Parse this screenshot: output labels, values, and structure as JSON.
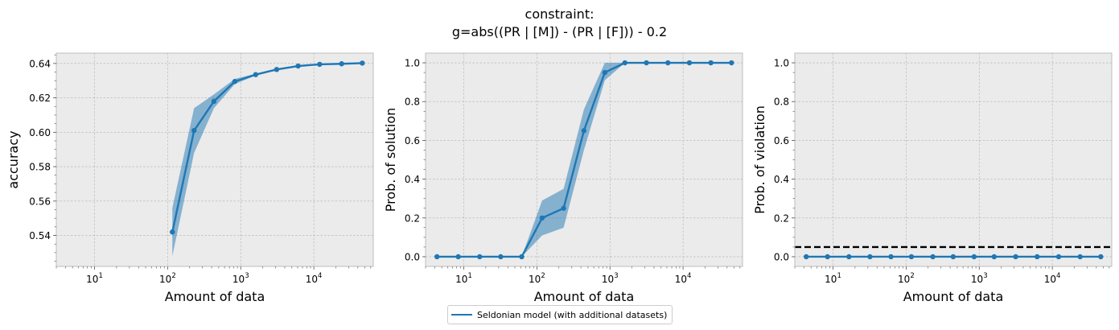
{
  "title_lines": [
    "constraint:",
    "g=abs((PR | [M]) - (PR | [F])) - 0.2"
  ],
  "legend": {
    "label": "Seldonian model (with additional datasets)"
  },
  "colors": {
    "series": "#1f77b4",
    "band": "#1f77b4",
    "reference_line": "#000000",
    "panel_bg": "#ebebeb",
    "grid": "#b0b0b0"
  },
  "chart_data": [
    {
      "type": "line",
      "xscale": "log",
      "xlabel": "Amount of data",
      "ylabel": "accuracy",
      "xlim": [
        3,
        65000
      ],
      "ylim": [
        0.522,
        0.646
      ],
      "xticks": [
        {
          "value": 10,
          "label": "10^1"
        },
        {
          "value": 100,
          "label": "10^2"
        },
        {
          "value": 1000,
          "label": "10^3"
        },
        {
          "value": 10000,
          "label": "10^4"
        }
      ],
      "yticks": [
        0.54,
        0.56,
        0.58,
        0.6,
        0.62,
        0.64
      ],
      "ytick_labels": [
        "0.54",
        "0.56",
        "0.58",
        "0.60",
        "0.62",
        "0.64"
      ],
      "grid": true,
      "series": [
        {
          "name": "Seldonian model (with additional datasets)",
          "x": [
            116,
            230,
            430,
            830,
            1600,
            3100,
            6100,
            12000,
            24000,
            46000
          ],
          "y": [
            0.542,
            0.601,
            0.618,
            0.6295,
            0.6335,
            0.6365,
            0.6385,
            0.6395,
            0.6398,
            0.6402
          ],
          "lower": [
            0.528,
            0.588,
            0.614,
            0.628,
            0.633,
            0.6362,
            0.6383,
            0.6393,
            0.6396,
            0.64
          ],
          "upper": [
            0.556,
            0.614,
            0.622,
            0.631,
            0.634,
            0.6368,
            0.6387,
            0.6397,
            0.64,
            0.6404
          ]
        }
      ]
    },
    {
      "type": "line",
      "xscale": "log",
      "xlabel": "Amount of data",
      "ylabel": "Prob. of solution",
      "xlim": [
        3,
        65000
      ],
      "ylim": [
        -0.05,
        1.05
      ],
      "xticks": [
        {
          "value": 10,
          "label": "10^1"
        },
        {
          "value": 100,
          "label": "10^2"
        },
        {
          "value": 1000,
          "label": "10^3"
        },
        {
          "value": 10000,
          "label": "10^4"
        }
      ],
      "yticks": [
        0.0,
        0.2,
        0.4,
        0.6,
        0.8,
        1.0
      ],
      "ytick_labels": [
        "0.0",
        "0.2",
        "0.4",
        "0.6",
        "0.8",
        "1.0"
      ],
      "grid": true,
      "series": [
        {
          "name": "Seldonian model (with additional datasets)",
          "x": [
            4.3,
            8.4,
            16.5,
            32,
            62,
            118,
            232,
            440,
            850,
            1600,
            3150,
            6200,
            12200,
            24000,
            46000
          ],
          "y": [
            0,
            0,
            0,
            0,
            0,
            0.2,
            0.25,
            0.65,
            0.95,
            1,
            1,
            1,
            1,
            1,
            1
          ],
          "lower": [
            0,
            0,
            0,
            0,
            0,
            0.11,
            0.15,
            0.55,
            0.91,
            1,
            1,
            1,
            1,
            1,
            1
          ],
          "upper": [
            0,
            0,
            0,
            0,
            0,
            0.29,
            0.35,
            0.76,
            1.0,
            1,
            1,
            1,
            1,
            1,
            1
          ]
        }
      ]
    },
    {
      "type": "line",
      "xscale": "log",
      "xlabel": "Amount of data",
      "ylabel": "Prob. of violation",
      "xlim": [
        3,
        65000
      ],
      "ylim": [
        -0.05,
        1.05
      ],
      "xticks": [
        {
          "value": 10,
          "label": "10^1"
        },
        {
          "value": 100,
          "label": "10^2"
        },
        {
          "value": 1000,
          "label": "10^3"
        },
        {
          "value": 10000,
          "label": "10^4"
        }
      ],
      "yticks": [
        0.0,
        0.2,
        0.4,
        0.6,
        0.8,
        1.0
      ],
      "ytick_labels": [
        "0.0",
        "0.2",
        "0.4",
        "0.6",
        "0.8",
        "1.0"
      ],
      "grid": true,
      "hline": 0.05,
      "series": [
        {
          "name": "Seldonian model (with additional datasets)",
          "x": [
            4.3,
            8.4,
            16.5,
            32,
            62,
            118,
            232,
            440,
            850,
            1600,
            3150,
            6200,
            12200,
            24000,
            46000
          ],
          "y": [
            0,
            0,
            0,
            0,
            0,
            0,
            0,
            0,
            0,
            0,
            0,
            0,
            0,
            0,
            0
          ],
          "lower": [
            0,
            0,
            0,
            0,
            0,
            0,
            0,
            0,
            0,
            0,
            0,
            0,
            0,
            0,
            0
          ],
          "upper": [
            0,
            0,
            0,
            0,
            0,
            0,
            0,
            0,
            0,
            0,
            0,
            0,
            0,
            0,
            0
          ]
        }
      ]
    }
  ]
}
